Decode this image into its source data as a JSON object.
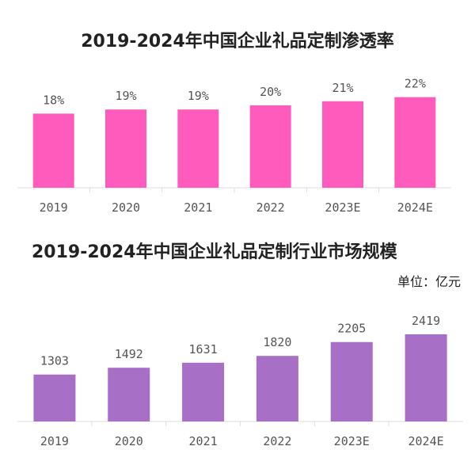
{
  "chart_data": [
    {
      "type": "bar",
      "title": "2019-2024年中国企业礼品定制渗透率",
      "categories": [
        "2019",
        "2020",
        "2021",
        "2022",
        "2023E",
        "2024E"
      ],
      "values": [
        18,
        19,
        19,
        20,
        21,
        22
      ],
      "value_labels": [
        "18%",
        "19%",
        "19%",
        "20%",
        "21%",
        "22%"
      ],
      "ylim": [
        0,
        22.5
      ],
      "grid": false,
      "color": "#ff5bbd"
    },
    {
      "type": "bar",
      "title": "2019-2024年中国企业礼品定制行业市场规模",
      "unit": "单位：亿元",
      "categories": [
        "2019",
        "2020",
        "2021",
        "2022",
        "2023E",
        "2024E"
      ],
      "values": [
        1303,
        1492,
        1631,
        1820,
        2205,
        2419
      ],
      "value_labels": [
        "1303",
        "1492",
        "1631",
        "1820",
        "2205",
        "2419"
      ],
      "ylim": [
        0,
        2419
      ],
      "grid": false,
      "color": "#a86fc6"
    }
  ]
}
